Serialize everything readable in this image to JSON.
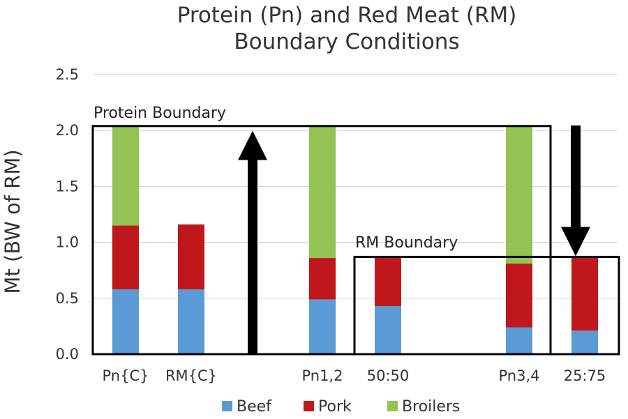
{
  "chart_data": {
    "type": "bar",
    "stacked": true,
    "title_lines": [
      "Protein (Pn) and Red Meat (RM)",
      "Boundary Conditions"
    ],
    "xlabel": "",
    "ylabel": "Mt (BW of RM)",
    "ylim": [
      0,
      2.5
    ],
    "yticks": [
      "0.0",
      "0.5",
      "1.0",
      "1.5",
      "2.0",
      "2.5"
    ],
    "grid": true,
    "legend_position": "bottom",
    "categories": [
      "Pn{C}",
      "RM{C}",
      "",
      "Pn1,2",
      "50:50",
      "",
      "Pn3,4",
      "25:75"
    ],
    "series": [
      {
        "name": "Beef",
        "color": "#5b9bd5",
        "values": [
          0.58,
          0.58,
          0,
          0.49,
          0.43,
          0,
          0.24,
          0.21
        ]
      },
      {
        "name": "Pork",
        "color": "#c0171d",
        "values": [
          0.57,
          0.58,
          0,
          0.37,
          0.44,
          0,
          0.57,
          0.66
        ]
      },
      {
        "name": "Broilers",
        "color": "#92c353",
        "values": [
          0.89,
          0,
          0,
          1.18,
          0,
          0,
          1.23,
          0
        ]
      }
    ],
    "annotations": {
      "protein_boundary": {
        "label": "Protein Boundary",
        "value": 2.04
      },
      "rm_boundary": {
        "label": "RM Boundary",
        "value": 0.87
      }
    }
  }
}
